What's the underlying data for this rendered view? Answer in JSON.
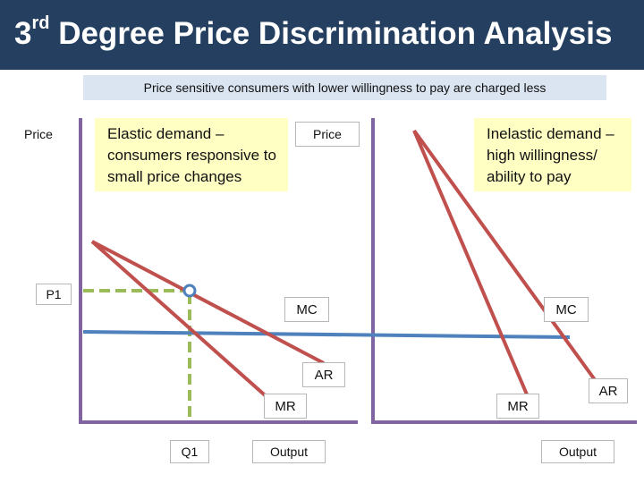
{
  "header": {
    "title_prefix": "3",
    "title_sup": "rd",
    "title_rest": " Degree Price Discrimination Analysis"
  },
  "subtitle": "Price sensitive consumers with lower willingness to pay are charged less",
  "left_panel": {
    "price_label": "Price",
    "p1_label": "P1",
    "q1_label": "Q1",
    "output_label": "Output",
    "mc_label": "MC",
    "ar_label": "AR",
    "mr_label": "MR",
    "note": "Elastic demand – consumers responsive to small price changes"
  },
  "right_panel": {
    "price_label": "Price",
    "output_label": "Output",
    "mc_label": "MC",
    "ar_label": "AR",
    "mr_label": "MR",
    "note": "Inelastic demand – high willingness/ ability to pay"
  },
  "colors": {
    "title_bar": "#243f60",
    "axis": "#8064a2",
    "demand": "#c0504d",
    "mc": "#4f81bd",
    "guide": "#9bbb59"
  }
}
